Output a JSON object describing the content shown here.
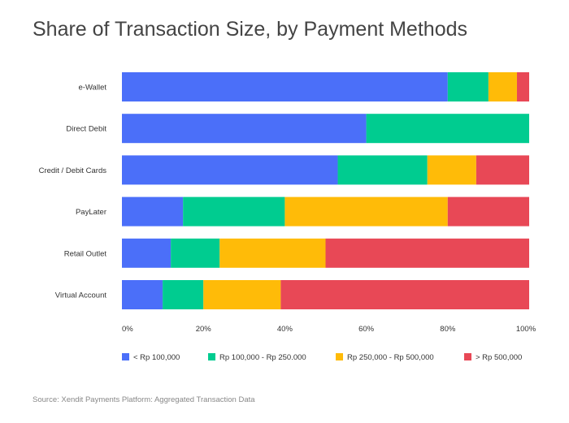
{
  "chart_data": {
    "type": "bar",
    "orientation": "horizontal",
    "stacked": true,
    "title": "Share of Transaction Size, by Payment Methods",
    "categories": [
      "e-Wallet",
      "Direct Debit",
      "Credit / Debit Cards",
      "PayLater",
      "Retail Outlet",
      "Virtual Account"
    ],
    "series": [
      {
        "name": "< Rp 100,000",
        "color": "#4b6ff9",
        "values": [
          80,
          60,
          53,
          15,
          12,
          10
        ]
      },
      {
        "name": "Rp 100,000 - Rp 250.000",
        "color": "#00cc90",
        "values": [
          10,
          40,
          22,
          25,
          12,
          10
        ]
      },
      {
        "name": "Rp 250,000 - Rp 500,000",
        "color": "#ffbb08",
        "values": [
          7,
          0,
          12,
          40,
          26,
          19
        ]
      },
      {
        "name": "> Rp 500,000",
        "color": "#e84856",
        "values": [
          3,
          0,
          13,
          20,
          50,
          61
        ]
      }
    ],
    "xlim": [
      0,
      100
    ],
    "x_ticks": [
      "0%",
      "20%",
      "40%",
      "60%",
      "80%",
      "100%"
    ],
    "grid": false,
    "legend_position": "bottom"
  },
  "source": "Source: Xendit Payments Platform: Aggregated Transaction Data"
}
